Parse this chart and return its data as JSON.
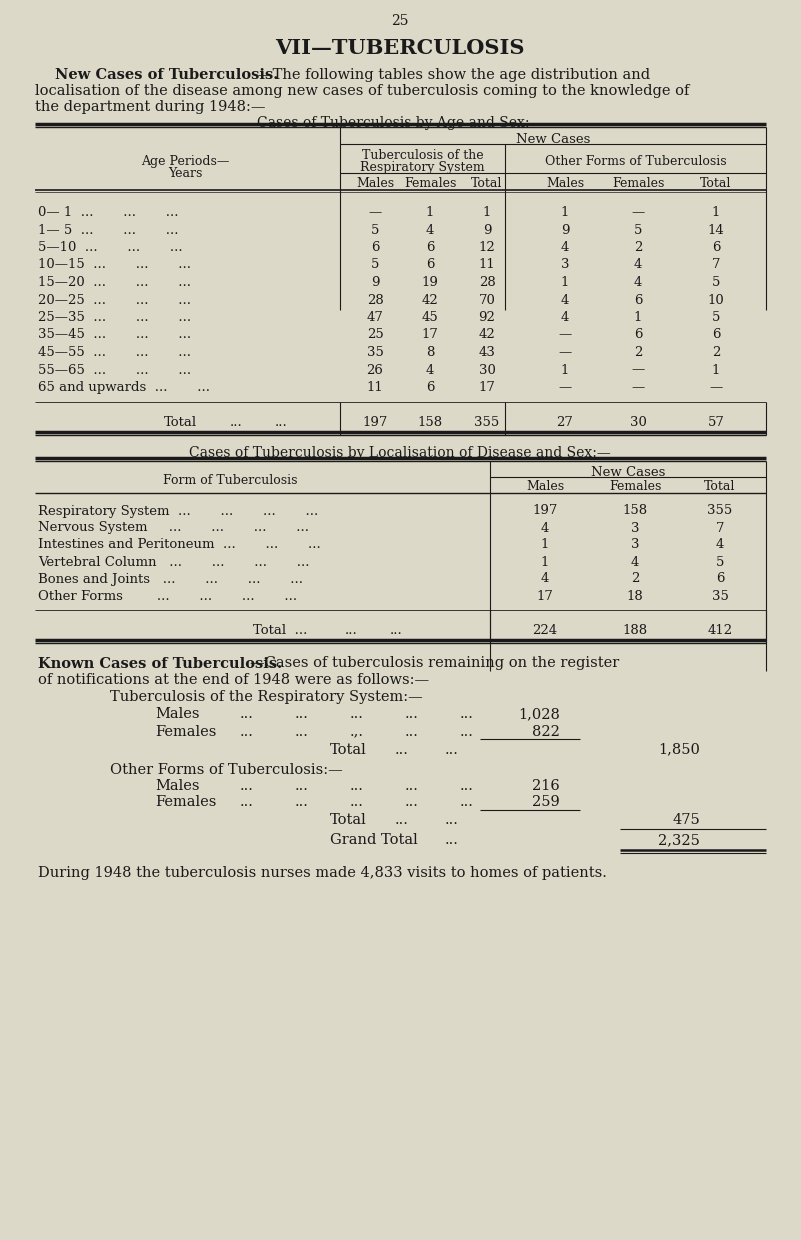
{
  "page_number": "25",
  "title": "VII—TUBERCULOSIS",
  "intro_bold": "New Cases of Tuberculosis.",
  "intro_text1": "—The following tables show the age distribution and",
  "intro_text2": "localisation of the disease among new cases of tuberculosis coming to the knowledge of",
  "intro_text3": "the department during 1948:—",
  "table1_title": "Cases of Tuberculosis by Age and Sex:—",
  "table1_rows_display": [
    {
      "age": "0— 1  ...       ...       ...",
      "resp_m": "—",
      "resp_f": "1",
      "resp_t": "1",
      "other_m": "1",
      "other_f": "—",
      "other_t": "1"
    },
    {
      "age": "1— 5  ...       ...       ...",
      "resp_m": "5",
      "resp_f": "4",
      "resp_t": "9",
      "other_m": "9",
      "other_f": "5",
      "other_t": "14"
    },
    {
      "age": "5—10  ...       ...       ...",
      "resp_m": "6",
      "resp_f": "6",
      "resp_t": "12",
      "other_m": "4",
      "other_f": "2",
      "other_t": "6"
    },
    {
      "age": "10—15  ...       ...       ...",
      "resp_m": "5",
      "resp_f": "6",
      "resp_t": "11",
      "other_m": "3",
      "other_f": "4",
      "other_t": "7"
    },
    {
      "age": "15—20  ...       ...       ...",
      "resp_m": "9",
      "resp_f": "19",
      "resp_t": "28",
      "other_m": "1",
      "other_f": "4",
      "other_t": "5"
    },
    {
      "age": "20—25  ...       ...       ...",
      "resp_m": "28",
      "resp_f": "42",
      "resp_t": "70",
      "other_m": "4",
      "other_f": "6",
      "other_t": "10"
    },
    {
      "age": "25—35  ...       ...       ...",
      "resp_m": "47",
      "resp_f": "45",
      "resp_t": "92",
      "other_m": "4",
      "other_f": "1",
      "other_t": "5"
    },
    {
      "age": "35—45  ...       ...       ...",
      "resp_m": "25",
      "resp_f": "17",
      "resp_t": "42",
      "other_m": "—",
      "other_f": "6",
      "other_t": "6"
    },
    {
      "age": "45—55  ...       ...       ...",
      "resp_m": "35",
      "resp_f": "8",
      "resp_t": "43",
      "other_m": "—",
      "other_f": "2",
      "other_t": "2"
    },
    {
      "age": "55—65  ...       ...       ...",
      "resp_m": "26",
      "resp_f": "4",
      "resp_t": "30",
      "other_m": "1",
      "other_f": "—",
      "other_t": "1"
    },
    {
      "age": "65 and upwards  ...       ...",
      "resp_m": "11",
      "resp_f": "6",
      "resp_t": "17",
      "other_m": "—",
      "other_f": "—",
      "other_t": "—"
    }
  ],
  "table1_total": {
    "resp_m": "197",
    "resp_f": "158",
    "resp_t": "355",
    "other_m": "27",
    "other_f": "30",
    "other_t": "57"
  },
  "table2_title": "Cases of Tuberculosis by Localisation of Disease and Sex:—",
  "table2_rows": [
    {
      "form": "Respiratory System  ...       ...       ...       ...",
      "males": "197",
      "females": "158",
      "total": "355"
    },
    {
      "form": "Nervous System     ...       ...       ...       ...",
      "males": "4",
      "females": "3",
      "total": "7"
    },
    {
      "form": "Intestines and Peritoneum  ...       ...       ...",
      "males": "1",
      "females": "3",
      "total": "4"
    },
    {
      "form": "Vertebral Column   ...       ...       ...       ...",
      "males": "1",
      "females": "4",
      "total": "5"
    },
    {
      "form": "Bones and Joints   ...       ...       ...       ...",
      "males": "4",
      "females": "2",
      "total": "6"
    },
    {
      "form": "Other Forms        ...       ...       ...       ...",
      "males": "17",
      "females": "18",
      "total": "35"
    }
  ],
  "table2_total": {
    "males": "224",
    "females": "188",
    "total": "412"
  },
  "known_cases_title_bold": "Known Cases of Tuberculosis.",
  "known_cases_title_rest": "—Cases of tuberculosis remaining on the register",
  "known_cases_title_line2": "of notifications at the end of 1948 were as follows:—",
  "known_cases_resp_header": "Tuberculosis of the Respiratory System:—",
  "known_cases_resp_males_label": "Males",
  "known_cases_resp_females_label": "Females",
  "known_cases_resp_males": "1,028",
  "known_cases_resp_females": "822",
  "known_cases_resp_total": "1,850",
  "known_cases_other_header": "Other Forms of Tuberculosis:—",
  "known_cases_other_males": "216",
  "known_cases_other_females": "259",
  "known_cases_other_total": "475",
  "grand_total_label": "Grand Total",
  "grand_total": "2,325",
  "footer": "During 1948 the tuberculosis nurses made 4,833 visits to homes of patients.",
  "bg_color": "#ddd9c8",
  "text_color": "#1a1a1a"
}
